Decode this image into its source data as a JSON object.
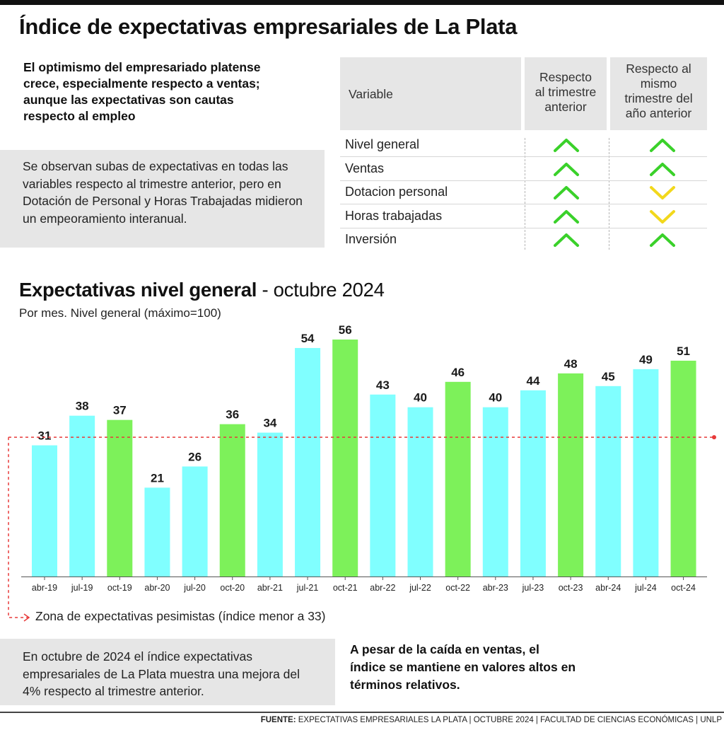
{
  "title": "Índice de expectativas empresariales de La Plata",
  "intro_bold": "El optimismo del empresariado platense crece, especialmente respecto a ventas; aunque las expectativas son cautas respecto al empleo",
  "intro_box": "Se observan subas de expectativas en todas las variables respecto al trimestre anterior, pero en Dotación de Personal y Horas Trabajadas midieron un empeoramiento interanual.",
  "table": {
    "headers": {
      "variable": "Variable",
      "col1": [
        "Respecto",
        "al trimestre",
        "anterior"
      ],
      "col2": [
        "Respecto al",
        "mismo",
        "trimestre del",
        "año anterior"
      ]
    },
    "rows": [
      {
        "label": "Nivel general",
        "vs_prev_quarter": "up",
        "vs_prev_year": "up"
      },
      {
        "label": "Ventas",
        "vs_prev_quarter": "up",
        "vs_prev_year": "up"
      },
      {
        "label": "Dotacion personal",
        "vs_prev_quarter": "up",
        "vs_prev_year": "down"
      },
      {
        "label": "Horas trabajadas",
        "vs_prev_quarter": "up",
        "vs_prev_year": "down"
      },
      {
        "label": "Inversión",
        "vs_prev_quarter": "up",
        "vs_prev_year": "up"
      }
    ],
    "icons": {
      "up": "chevron-up-icon",
      "down": "chevron-down-icon"
    },
    "colors": {
      "up": "#3ad12a",
      "down": "#f2d81c"
    }
  },
  "chart_title_bold": "Expectativas nivel general",
  "chart_title_light": " - octubre 2024",
  "chart_subtitle": "Por mes. Nivel general (máximo=100)",
  "pessimism_note": "Zona de expectativas pesimistas (índice menor a 33)",
  "outro_box": "En octubre de 2024 el índice expectativas empresariales de La Plata muestra una mejora del 4% respecto al trimestre anterior.",
  "outro_bold": "A pesar de la caída en ventas, el índice se mantiene en valores altos en términos relativos.",
  "footer": {
    "label": "FUENTE:",
    "text": " EXPECTATIVAS EMPRESARIALES LA PLATA | OCTUBRE 2024 | FACULTAD DE CIENCIAS ECONÓMICAS | UNLP"
  },
  "chart_data": {
    "type": "bar",
    "title": "Expectativas nivel general - octubre 2024",
    "subtitle": "Por mes. Nivel general (máximo=100)",
    "categories": [
      "abr-19",
      "jul-19",
      "oct-19",
      "abr-20",
      "jul-20",
      "oct-20",
      "abr-21",
      "jul-21",
      "oct-21",
      "abr-22",
      "jul-22",
      "oct-22",
      "abr-23",
      "jul-23",
      "oct-23",
      "abr-24",
      "jul-24",
      "oct-24"
    ],
    "values": [
      31,
      38,
      37,
      21,
      26,
      36,
      34,
      54,
      56,
      43,
      40,
      46,
      40,
      44,
      48,
      45,
      49,
      51
    ],
    "ylim": [
      0,
      56
    ],
    "threshold": 33,
    "threshold_label": "Zona de expectativas pesimistas (índice menor a 33)",
    "colors": {
      "default": "#80ffff",
      "october": "#7df15a",
      "threshold": "#e83a3a"
    },
    "grid": false,
    "data_labels": true
  }
}
